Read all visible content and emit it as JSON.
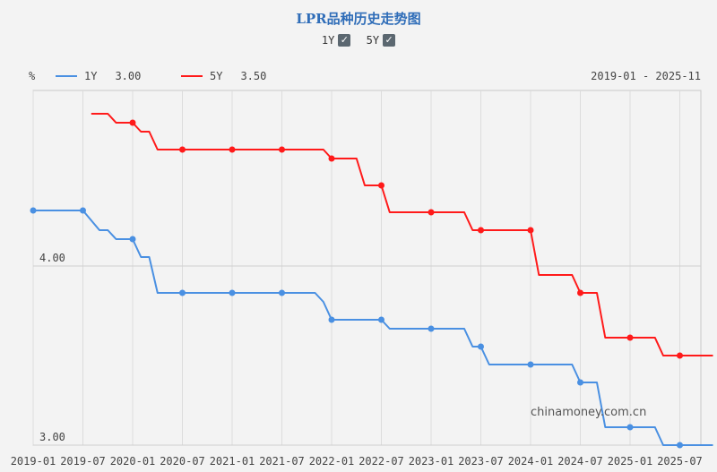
{
  "title": "LPR品种历史走势图",
  "toggles": [
    {
      "label": "1Y",
      "checked": true
    },
    {
      "label": "5Y",
      "checked": true
    }
  ],
  "unit_label": "%",
  "date_range": "2019-01 - 2025-11",
  "watermark": "chinamoney.com.cn",
  "legend": [
    {
      "name": "1Y",
      "value": "3.00",
      "color": "#4a90e2"
    },
    {
      "name": "5Y",
      "value": "3.50",
      "color": "#ff1a1a"
    }
  ],
  "chart_data": {
    "type": "line",
    "xlabel": "",
    "ylabel": "%",
    "x_ticks": [
      "2019-01",
      "2019-07",
      "2020-01",
      "2020-07",
      "2021-01",
      "2021-07",
      "2022-01",
      "2022-07",
      "2023-01",
      "2023-07",
      "2024-01",
      "2024-07",
      "2025-01",
      "2025-07"
    ],
    "y_ticks": [
      3.0,
      4.0
    ],
    "ylim": [
      3.0,
      4.98
    ],
    "grid": true,
    "series": [
      {
        "name": "1Y",
        "color": "#4a90e2",
        "points": [
          [
            "2019-01",
            4.31
          ],
          [
            "2019-07",
            4.31
          ],
          [
            "2019-09",
            4.2
          ],
          [
            "2019-10",
            4.2
          ],
          [
            "2019-11",
            4.15
          ],
          [
            "2020-01",
            4.15
          ],
          [
            "2020-02",
            4.05
          ],
          [
            "2020-03",
            4.05
          ],
          [
            "2020-04",
            3.85
          ],
          [
            "2020-07",
            3.85
          ],
          [
            "2021-01",
            3.85
          ],
          [
            "2021-07",
            3.85
          ],
          [
            "2021-11",
            3.85
          ],
          [
            "2021-12",
            3.8
          ],
          [
            "2022-01",
            3.7
          ],
          [
            "2022-07",
            3.7
          ],
          [
            "2022-08",
            3.65
          ],
          [
            "2023-01",
            3.65
          ],
          [
            "2023-05",
            3.65
          ],
          [
            "2023-06",
            3.55
          ],
          [
            "2023-07",
            3.55
          ],
          [
            "2023-08",
            3.45
          ],
          [
            "2024-01",
            3.45
          ],
          [
            "2024-06",
            3.45
          ],
          [
            "2024-07",
            3.35
          ],
          [
            "2024-09",
            3.35
          ],
          [
            "2024-10",
            3.1
          ],
          [
            "2025-01",
            3.1
          ],
          [
            "2025-04",
            3.1
          ],
          [
            "2025-05",
            3.0
          ],
          [
            "2025-07",
            3.0
          ],
          [
            "2025-11",
            3.0
          ]
        ],
        "markers": [
          "2019-01",
          "2019-07",
          "2020-01",
          "2020-07",
          "2021-01",
          "2021-07",
          "2022-01",
          "2022-07",
          "2023-01",
          "2023-07",
          "2024-01",
          "2024-07",
          "2025-01",
          "2025-07"
        ]
      },
      {
        "name": "5Y",
        "color": "#ff1a1a",
        "points": [
          [
            "2019-08",
            4.85
          ],
          [
            "2019-10",
            4.85
          ],
          [
            "2019-11",
            4.8
          ],
          [
            "2020-01",
            4.8
          ],
          [
            "2020-02",
            4.75
          ],
          [
            "2020-03",
            4.75
          ],
          [
            "2020-04",
            4.65
          ],
          [
            "2020-07",
            4.65
          ],
          [
            "2021-01",
            4.65
          ],
          [
            "2021-07",
            4.65
          ],
          [
            "2021-12",
            4.65
          ],
          [
            "2022-01",
            4.6
          ],
          [
            "2022-04",
            4.6
          ],
          [
            "2022-05",
            4.45
          ],
          [
            "2022-07",
            4.45
          ],
          [
            "2022-08",
            4.3
          ],
          [
            "2023-01",
            4.3
          ],
          [
            "2023-05",
            4.3
          ],
          [
            "2023-06",
            4.2
          ],
          [
            "2023-07",
            4.2
          ],
          [
            "2024-01",
            4.2
          ],
          [
            "2024-02",
            3.95
          ],
          [
            "2024-06",
            3.95
          ],
          [
            "2024-07",
            3.85
          ],
          [
            "2024-09",
            3.85
          ],
          [
            "2024-10",
            3.6
          ],
          [
            "2025-01",
            3.6
          ],
          [
            "2025-04",
            3.6
          ],
          [
            "2025-05",
            3.5
          ],
          [
            "2025-07",
            3.5
          ],
          [
            "2025-11",
            3.5
          ]
        ],
        "markers": [
          "2020-01",
          "2020-07",
          "2021-01",
          "2021-07",
          "2022-01",
          "2022-07",
          "2023-01",
          "2023-07",
          "2024-01",
          "2024-07",
          "2025-01",
          "2025-07"
        ]
      }
    ]
  }
}
